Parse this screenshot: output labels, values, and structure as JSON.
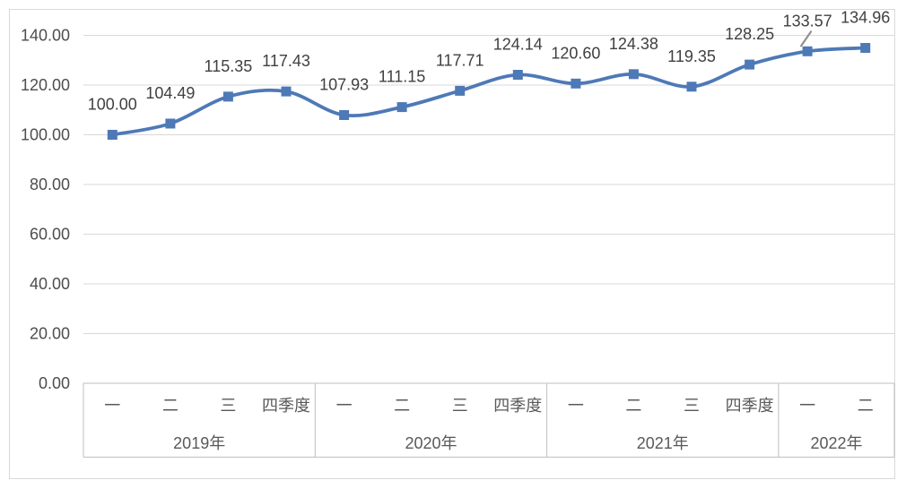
{
  "chart_data": {
    "type": "line",
    "title": "",
    "legend": "none",
    "grid": true,
    "smooth": true,
    "marker": "square",
    "series": [
      {
        "name": "index",
        "values": [
          100.0,
          104.49,
          115.35,
          117.43,
          107.93,
          111.15,
          117.71,
          124.14,
          120.6,
          124.38,
          119.35,
          128.25,
          133.57,
          134.96
        ]
      }
    ],
    "data_labels": [
      "100.00",
      "104.49",
      "115.35",
      "117.43",
      "107.93",
      "111.15",
      "117.71",
      "124.14",
      "120.60",
      "124.38",
      "119.35",
      "128.25",
      "133.57",
      "134.96"
    ],
    "categories": [
      "一",
      "二",
      "三",
      "四季度",
      "一",
      "二",
      "三",
      "四季度",
      "一",
      "二",
      "三",
      "四季度",
      "一",
      "二"
    ],
    "category_groups": [
      {
        "label": "2019年",
        "span": 4
      },
      {
        "label": "2020年",
        "span": 4
      },
      {
        "label": "2021年",
        "span": 4
      },
      {
        "label": "2022年",
        "span": 2
      }
    ],
    "xlabel": "",
    "ylabel": "",
    "ylim": [
      0,
      140
    ],
    "yticks": [
      {
        "value": 0,
        "label": "0.00"
      },
      {
        "value": 20,
        "label": "20.00"
      },
      {
        "value": 40,
        "label": "40.00"
      },
      {
        "value": 60,
        "label": "60.00"
      },
      {
        "value": 80,
        "label": "80.00"
      },
      {
        "value": 100,
        "label": "100.00"
      },
      {
        "value": 120,
        "label": "120.00"
      },
      {
        "value": 140,
        "label": "140.00"
      }
    ],
    "colors": {
      "line": "#4E79B7",
      "marker": "#4E79B7",
      "gridline": "#D9D9D9",
      "axis_border": "#BFBFBF",
      "tick_text": "#4D4D4D",
      "data_label_text": "#404040",
      "category_text": "#595959",
      "frame_border": "#D9D9D9",
      "cursor": "#909090",
      "background": "#FFFFFF"
    }
  }
}
